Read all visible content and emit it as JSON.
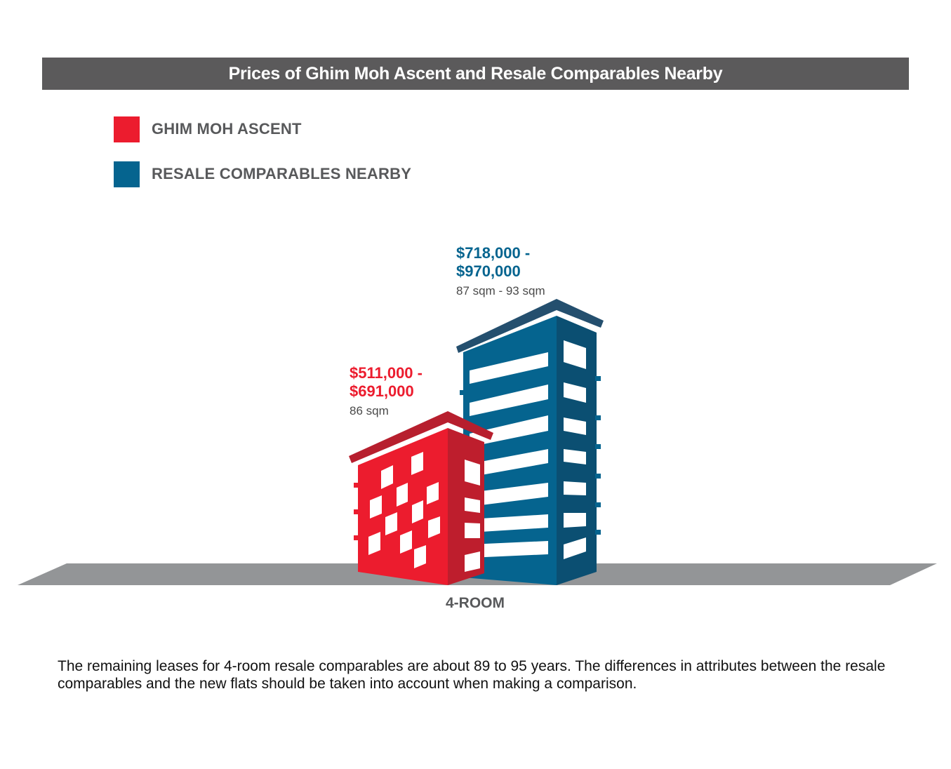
{
  "title": "Prices of Ghim Moh Ascent and Resale Comparables Nearby",
  "colors": {
    "red": "#ec1c2e",
    "blue": "#05648f",
    "title_bg": "#5b5a5b",
    "ground": "#939597"
  },
  "legend": [
    {
      "label": "GHIM MOH ASCENT",
      "color": "#ec1c2e"
    },
    {
      "label": "RESALE COMPARABLES NEARBY",
      "color": "#05648f"
    }
  ],
  "chart_data": {
    "type": "bar",
    "categories": [
      "4-ROOM"
    ],
    "series": [
      {
        "name": "GHIM MOH ASCENT",
        "price_range": [
          511000,
          691000
        ],
        "price_label_line1": "$511,000 -",
        "price_label_line2": "$691,000",
        "size_label": "86 sqm"
      },
      {
        "name": "RESALE COMPARABLES NEARBY",
        "price_range": [
          718000,
          970000
        ],
        "price_label_line1": "$718,000 -",
        "price_label_line2": "$970,000",
        "size_label": "87 sqm - 93 sqm"
      }
    ]
  },
  "note": "The remaining leases for 4-room resale comparables are about 89 to 95 years. The differences in attributes between the resale comparables and the new flats should be taken into account when making a comparison."
}
